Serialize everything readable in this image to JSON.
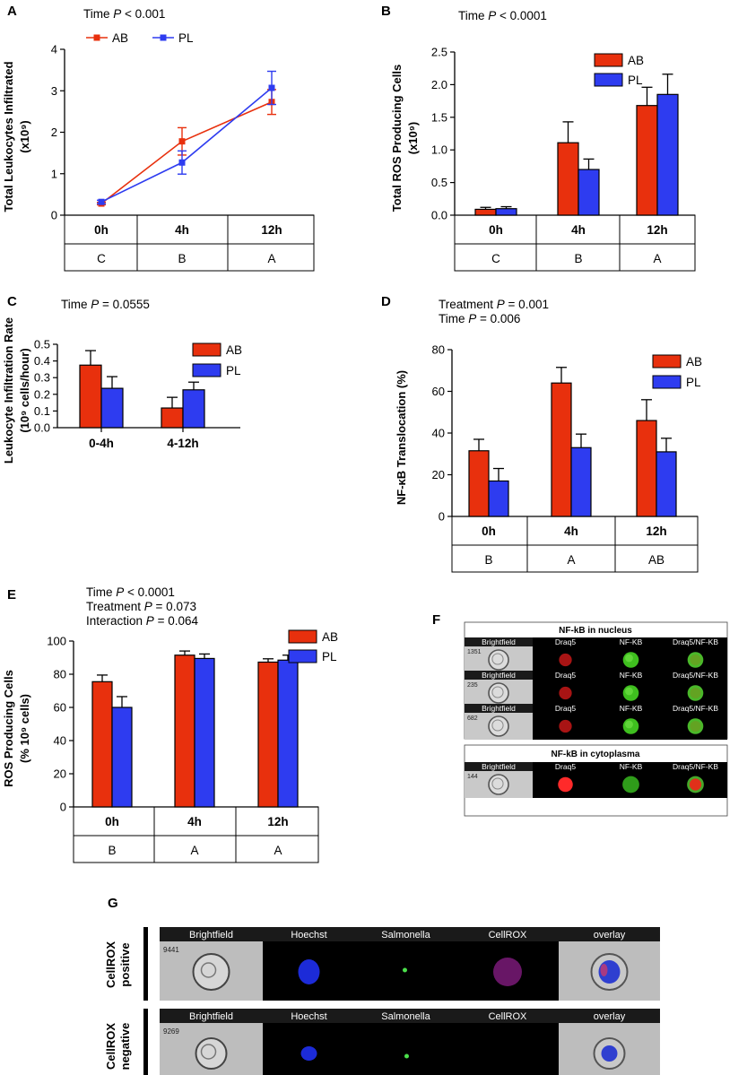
{
  "figure": {
    "panel_letters": [
      "A",
      "B",
      "C",
      "D",
      "E",
      "F",
      "G"
    ],
    "F": {
      "nucleus_title": "NF-kB in nucleus",
      "cytoplasm_title": "NF-kB in cytoplasma",
      "channels": [
        "Brightfield",
        "Draq5",
        "NF-KB",
        "Draq5/NF-KB"
      ],
      "cell_ids": [
        "1351",
        "235",
        "682",
        "144"
      ]
    },
    "G": {
      "channels": [
        "Brightfield",
        "Hoechst",
        "Salmonella",
        "CellROX",
        "overlay"
      ],
      "rows": [
        {
          "label_1": "CellROX",
          "label_2": "positive",
          "cell_id": "9441"
        },
        {
          "label_1": "CellROX",
          "label_2": "negative",
          "cell_id": "9269"
        }
      ]
    }
  },
  "colors": {
    "AB": "#e8300d",
    "PL": "#2e3cf0"
  },
  "chart_data": [
    {
      "panel": "A",
      "type": "line",
      "stats": [
        {
          "text": "Time ",
          "p": "P",
          "rest": " < 0.001"
        }
      ],
      "ylabel_1": "Total Leukocytes Infiltrated",
      "ylabel_2": "(x10⁹)",
      "ylim": [
        0,
        4
      ],
      "yticks": [
        "0",
        "1",
        "2",
        "3",
        "4"
      ],
      "categories": [
        "0h",
        "4h",
        "12h"
      ],
      "groups": [
        "C",
        "B",
        "A"
      ],
      "legend": [
        "AB",
        "PL"
      ],
      "series": [
        {
          "name": "AB",
          "values": [
            0.28,
            1.78,
            2.73
          ],
          "errors": [
            0.03,
            0.33,
            0.3
          ]
        },
        {
          "name": "PL",
          "values": [
            0.32,
            1.27,
            3.07
          ],
          "errors": [
            0.04,
            0.28,
            0.4
          ]
        }
      ]
    },
    {
      "panel": "B",
      "type": "bar",
      "stats": [
        {
          "text": "Time ",
          "p": "P",
          "rest": " < 0.0001"
        }
      ],
      "ylabel_1": "Total ROS Producing Cells",
      "ylabel_2": "(x10⁹)",
      "ylim": [
        0,
        2.5
      ],
      "yticks": [
        "0.0",
        "0.5",
        "1.0",
        "1.5",
        "2.0",
        "2.5"
      ],
      "categories": [
        "0h",
        "4h",
        "12h"
      ],
      "groups": [
        "C",
        "B",
        "A"
      ],
      "legend": [
        "AB",
        "PL"
      ],
      "series": [
        {
          "name": "AB",
          "values": [
            0.09,
            1.11,
            1.68
          ],
          "errors": [
            0.03,
            0.32,
            0.28
          ]
        },
        {
          "name": "PL",
          "values": [
            0.1,
            0.7,
            1.85
          ],
          "errors": [
            0.03,
            0.16,
            0.31
          ]
        }
      ]
    },
    {
      "panel": "C",
      "type": "bar",
      "stats": [
        {
          "text": "Time ",
          "p": "P",
          "rest": " = 0.0555"
        }
      ],
      "ylabel_1": "Leukocyte Infiltration Rate",
      "ylabel_2": "(10⁹ cells/hour)",
      "ylim": [
        0,
        0.5
      ],
      "yticks": [
        "0.0",
        "0.1",
        "0.2",
        "0.3",
        "0.4",
        "0.5"
      ],
      "categories": [
        "0-4h",
        "4-12h"
      ],
      "groups": [],
      "legend": [
        "AB",
        "PL"
      ],
      "series": [
        {
          "name": "AB",
          "values": [
            0.375,
            0.118
          ],
          "errors": [
            0.087,
            0.064
          ]
        },
        {
          "name": "PL",
          "values": [
            0.236,
            0.227
          ],
          "errors": [
            0.07,
            0.046
          ]
        }
      ]
    },
    {
      "panel": "D",
      "type": "bar",
      "stats": [
        {
          "text": "Treatment ",
          "p": "P",
          "rest": " = 0.001"
        },
        {
          "text": "Time ",
          "p": "P",
          "rest": " = 0.006"
        }
      ],
      "ylabel_1": "NF-κB Translocation (%)",
      "ylabel_2": "",
      "ylim": [
        0,
        80
      ],
      "yticks": [
        "0",
        "20",
        "40",
        "60",
        "80"
      ],
      "categories": [
        "0h",
        "4h",
        "12h"
      ],
      "groups": [
        "B",
        "A",
        "AB"
      ],
      "legend": [
        "AB",
        "PL"
      ],
      "series": [
        {
          "name": "AB",
          "values": [
            31.5,
            64,
            46
          ],
          "errors": [
            5.5,
            7.5,
            10
          ]
        },
        {
          "name": "PL",
          "values": [
            17,
            33,
            31
          ],
          "errors": [
            6,
            6.5,
            6.5
          ]
        }
      ]
    },
    {
      "panel": "E",
      "type": "bar",
      "stats": [
        {
          "text": "Time ",
          "p": "P",
          "rest": " < 0.0001"
        },
        {
          "text": "Treatment ",
          "p": "P",
          "rest": " = 0.073"
        },
        {
          "text": "Interaction ",
          "p": "P",
          "rest": " = 0.064"
        }
      ],
      "ylabel_1": "ROS Producing Cells",
      "ylabel_2": "(% 10⁹ cells)",
      "ylim": [
        0,
        100
      ],
      "yticks": [
        "0",
        "20",
        "40",
        "60",
        "80",
        "100"
      ],
      "categories": [
        "0h",
        "4h",
        "12h"
      ],
      "groups": [
        "B",
        "A",
        "A"
      ],
      "legend": [
        "AB",
        "PL"
      ],
      "series": [
        {
          "name": "AB",
          "values": [
            75.5,
            91.5,
            87.3
          ],
          "errors": [
            4,
            2.5,
            2
          ]
        },
        {
          "name": "PL",
          "values": [
            60,
            89.5,
            88.5
          ],
          "errors": [
            6.5,
            2.7,
            3
          ]
        }
      ]
    }
  ]
}
